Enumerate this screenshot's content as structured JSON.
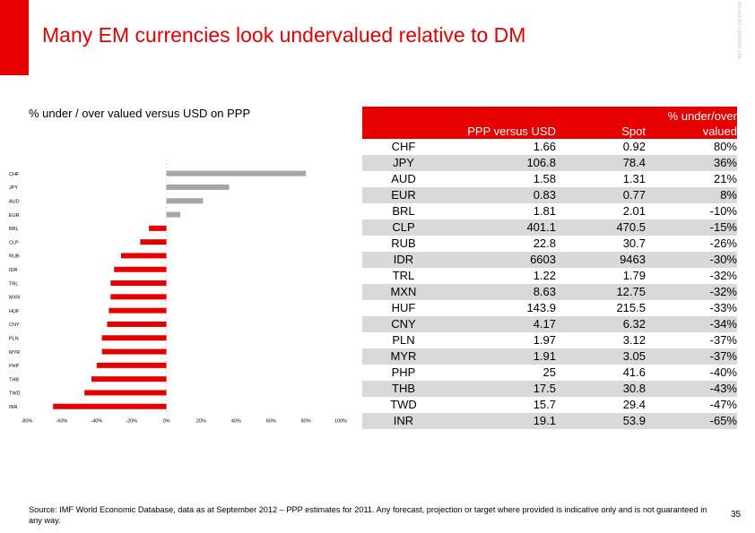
{
  "header": {
    "title": "Many EM currencies look undervalued relative to DM",
    "side_label": "Issued for customer use"
  },
  "subtitle": "% under / over valued versus USD on PPP",
  "chart_data": {
    "type": "bar",
    "orientation": "horizontal",
    "categories": [
      "CHF",
      "JPY",
      "AUD",
      "EUR",
      "BRL",
      "CLP",
      "RUB",
      "IDR",
      "TRL",
      "MXN",
      "HUF",
      "CNY",
      "PLN",
      "MYR",
      "PHP",
      "THB",
      "TWD",
      "INR"
    ],
    "values": [
      80,
      36,
      21,
      8,
      -10,
      -15,
      -26,
      -30,
      -32,
      -32,
      -33,
      -34,
      -37,
      -37,
      -40,
      -43,
      -47,
      -65
    ],
    "xlim": [
      -80,
      100
    ],
    "xticks": [
      "-80%",
      "-60%",
      "-40%",
      "-20%",
      "0%",
      "20%",
      "40%",
      "60%",
      "80%",
      "100%"
    ],
    "colors": {
      "positive": "#a6a6a6",
      "negative": "#e60000"
    }
  },
  "table": {
    "headers": [
      "",
      "PPP versus USD",
      "Spot",
      "% under/over valued"
    ],
    "rows": [
      [
        "CHF",
        "1.66",
        "0.92",
        "80%"
      ],
      [
        "JPY",
        "106.8",
        "78.4",
        "36%"
      ],
      [
        "AUD",
        "1.58",
        "1.31",
        "21%"
      ],
      [
        "EUR",
        "0.83",
        "0.77",
        "8%"
      ],
      [
        "BRL",
        "1.81",
        "2.01",
        "-10%"
      ],
      [
        "CLP",
        "401.1",
        "470.5",
        "-15%"
      ],
      [
        "RUB",
        "22.8",
        "30.7",
        "-26%"
      ],
      [
        "IDR",
        "6603",
        "9463",
        "-30%"
      ],
      [
        "TRL",
        "1.22",
        "1.79",
        "-32%"
      ],
      [
        "MXN",
        "8.63",
        "12.75",
        "-32%"
      ],
      [
        "HUF",
        "143.9",
        "215.5",
        "-33%"
      ],
      [
        "CNY",
        "4.17",
        "6.32",
        "-34%"
      ],
      [
        "PLN",
        "1.97",
        "3.12",
        "-37%"
      ],
      [
        "MYR",
        "1.91",
        "3.05",
        "-37%"
      ],
      [
        "PHP",
        "25",
        "41.6",
        "-40%"
      ],
      [
        "THB",
        "17.5",
        "30.8",
        "-43%"
      ],
      [
        "TWD",
        "15.7",
        "29.4",
        "-47%"
      ],
      [
        "INR",
        "19.1",
        "53.9",
        "-65%"
      ]
    ]
  },
  "footer": {
    "source": "Source: IMF World Economic Database, data as at September 2012 – PPP estimates for 2011. Any forecast, projection or target where provided is indicative only and is not guaranteed in any way.",
    "page_number": "35"
  },
  "colors": {
    "accent": "#e60000",
    "row_shade": "#d9d9d9"
  }
}
